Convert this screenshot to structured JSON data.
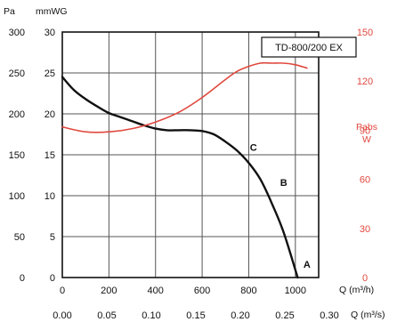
{
  "chart_data": {
    "type": "line",
    "model_label": "TD-800/200 EX",
    "pressure_unit_pa": "Pa",
    "pressure_unit_mmwg": "mmWG",
    "power_label": "Pabs",
    "power_unit": "W",
    "flow_axis_m3h_label": "Q (m³/h)",
    "flow_axis_m3s_label": "Q (m³/s)",
    "x_m3h_ticks": [
      "0",
      "200",
      "400",
      "600",
      "800",
      "1000"
    ],
    "x_m3h_range": [
      0,
      1100
    ],
    "x_m3s_ticks": [
      "0.00",
      "0.05",
      "0.10",
      "0.15",
      "0.20",
      "0.25",
      "0.30"
    ],
    "y_pa_ticks": [
      "0",
      "50",
      "100",
      "150",
      "200",
      "250",
      "300"
    ],
    "y_pa_range": [
      0,
      300
    ],
    "y_mmwg_ticks": [
      "0",
      "5",
      "10",
      "15",
      "20",
      "25",
      "30"
    ],
    "y_power_ticks": [
      "0",
      "30",
      "60",
      "90",
      "120",
      "150"
    ],
    "y_power_range": [
      0,
      150
    ],
    "grid": true,
    "series": [
      {
        "axis": "pressure_pa",
        "color": "#111111",
        "x": [
          0,
          50,
          100,
          150,
          200,
          250,
          300,
          350,
          400,
          450,
          500,
          550,
          600,
          650,
          700,
          750,
          800,
          850,
          900,
          950,
          1010
        ],
        "y": [
          245,
          229,
          218,
          209,
          201,
          196,
          191,
          186,
          182,
          180,
          180,
          180,
          179,
          175,
          166,
          155,
          140,
          120,
          90,
          55,
          0
        ]
      },
      {
        "axis": "power_w",
        "color": "#e0483e",
        "x": [
          0,
          100,
          200,
          300,
          400,
          500,
          600,
          700,
          750,
          800,
          850,
          900,
          950,
          1000,
          1050
        ],
        "y": [
          92,
          89,
          89,
          91,
          95,
          101,
          110,
          121,
          126,
          129,
          131,
          131,
          131,
          130,
          128
        ]
      }
    ],
    "point_labels": [
      {
        "text": "C",
        "x": 820,
        "y": 155
      },
      {
        "text": "B",
        "x": 950,
        "y": 112
      },
      {
        "text": "A",
        "x": 1050,
        "y": 12
      }
    ]
  }
}
